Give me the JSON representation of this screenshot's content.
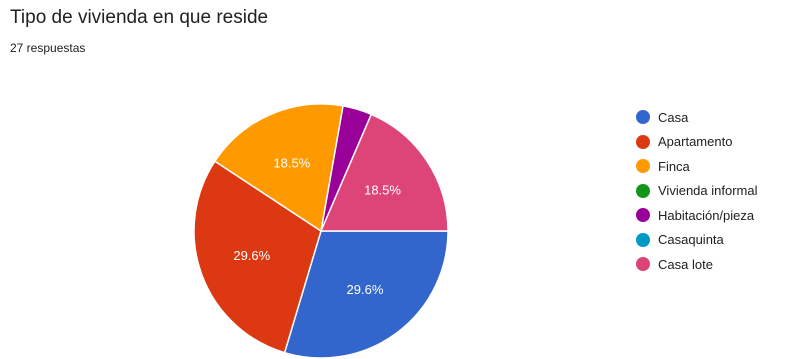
{
  "chart_data": {
    "type": "pie",
    "title": "Tipo de vivienda en que reside",
    "subtitle": "27 respuestas",
    "legend_position": "right",
    "categories": [
      "Casa",
      "Apartamento",
      "Finca",
      "Vivienda informal",
      "Habitación/pieza",
      "Casaquinta",
      "Casa lote"
    ],
    "counts": [
      8,
      8,
      5,
      0,
      1,
      0,
      5
    ],
    "percent_labels": [
      "29.6%",
      "29.6%",
      "18.5%",
      "",
      "",
      "",
      "18.5%"
    ],
    "colors": [
      "#3366cc",
      "#dc3912",
      "#ff9900",
      "#109618",
      "#990099",
      "#0099c6",
      "#dd4477"
    ]
  }
}
